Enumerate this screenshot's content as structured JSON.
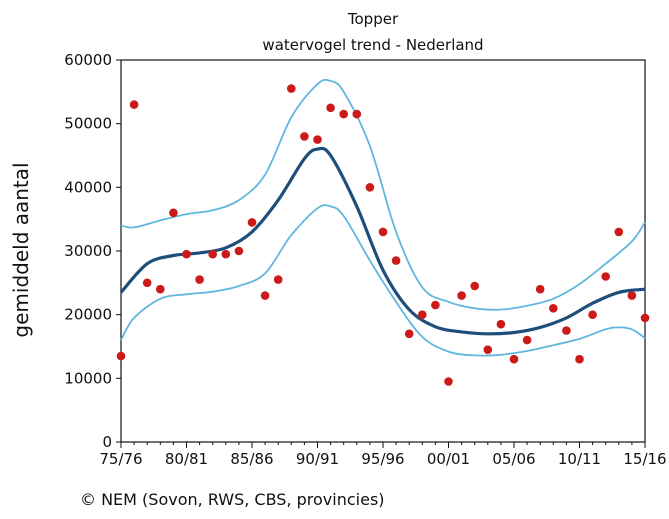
{
  "chart_data": {
    "type": "scatter",
    "title": "Topper",
    "subtitle": "watervogel trend - Nederland",
    "xlabel": "",
    "ylabel": "gemiddeld aantal",
    "ylim": [
      0,
      60000
    ],
    "yticks": [
      0,
      10000,
      20000,
      30000,
      40000,
      50000,
      60000
    ],
    "ytick_labels": [
      "0",
      "10000",
      "20000",
      "30000",
      "40000",
      "50000",
      "60000"
    ],
    "x_index_range": [
      0,
      40
    ],
    "xticks": [
      0,
      5,
      10,
      15,
      20,
      25,
      30,
      35,
      40
    ],
    "xtick_labels": [
      "75/76",
      "80/81",
      "85/86",
      "90/91",
      "95/96",
      "00/01",
      "05/06",
      "10/11",
      "15/16"
    ],
    "grid": false,
    "colors": {
      "points": "#cc1a1a",
      "trend": "#1e4f7a",
      "band": "#5fb7dd",
      "axis": "#111111"
    },
    "series": [
      {
        "kind": "points",
        "x": [
          0,
          1,
          2,
          3,
          4,
          5,
          6,
          7,
          8,
          9,
          10,
          11,
          12,
          13,
          14,
          15,
          16,
          17,
          18,
          19,
          20,
          21,
          22,
          23,
          24,
          25,
          26,
          27,
          28,
          29,
          30,
          31,
          32,
          33,
          34,
          35,
          36,
          37,
          38,
          39,
          40
        ],
        "y": [
          13500,
          53000,
          25000,
          24000,
          36000,
          29500,
          25500,
          29500,
          29500,
          30000,
          34500,
          23000,
          25500,
          55500,
          48000,
          47500,
          52500,
          51500,
          51500,
          40000,
          33000,
          28500,
          17000,
          20000,
          21500,
          9500,
          23000,
          24500,
          14500,
          18500,
          13000,
          16000,
          24000,
          21000,
          17500,
          13000,
          20000,
          26000,
          33000,
          23000,
          19500
        ]
      },
      {
        "kind": "trend",
        "x": [
          0,
          2,
          4,
          6,
          8,
          10,
          12,
          14,
          15,
          16,
          18,
          20,
          22,
          24,
          26,
          28,
          30,
          32,
          34,
          36,
          38,
          40
        ],
        "y": [
          23500,
          28000,
          29300,
          29700,
          30500,
          33000,
          38000,
          44500,
          46000,
          45000,
          37000,
          27000,
          20800,
          18100,
          17300,
          17000,
          17200,
          18000,
          19500,
          21800,
          23500,
          24000
        ]
      },
      {
        "kind": "upper",
        "x": [
          0,
          1,
          3,
          5,
          7,
          9,
          11,
          13,
          15,
          16,
          17,
          19,
          21,
          23,
          25,
          27,
          29,
          31,
          33,
          35,
          37,
          39,
          40
        ],
        "y": [
          34000,
          33700,
          34800,
          35800,
          36400,
          38000,
          42000,
          51000,
          56200,
          56700,
          55000,
          46500,
          33000,
          24300,
          22000,
          21000,
          20800,
          21400,
          22500,
          24800,
          28000,
          31500,
          34500
        ]
      },
      {
        "kind": "lower",
        "x": [
          0,
          1,
          3,
          5,
          7,
          9,
          11,
          13,
          15,
          16,
          17,
          19,
          21,
          23,
          25,
          27,
          29,
          31,
          33,
          35,
          37,
          38,
          39,
          40
        ],
        "y": [
          16000,
          19500,
          22500,
          23200,
          23600,
          24500,
          26500,
          32500,
          36700,
          37000,
          35500,
          28500,
          22000,
          16500,
          14200,
          13600,
          13700,
          14300,
          15200,
          16200,
          17700,
          18000,
          17700,
          16300
        ]
      }
    ]
  },
  "footer": {
    "copyright": "© NEM (Sovon, RWS, CBS, provincies)"
  }
}
